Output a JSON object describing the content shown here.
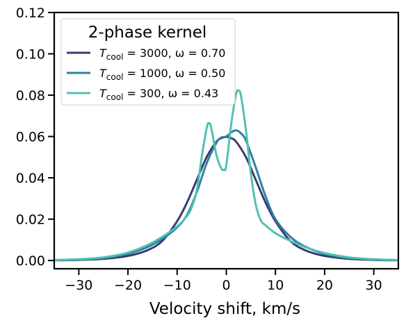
{
  "chart_data": {
    "type": "line",
    "xlabel": "Velocity shift, km/s",
    "ylabel": "",
    "xlim": [
      -35,
      35
    ],
    "ylim": [
      -0.004,
      0.12
    ],
    "xticks": [
      -30,
      -20,
      -10,
      0,
      10,
      20,
      30
    ],
    "xtick_labels": [
      "−30",
      "−20",
      "−10",
      "0",
      "10",
      "20",
      "30"
    ],
    "yticks": [
      0.0,
      0.02,
      0.04,
      0.06,
      0.08,
      0.1,
      0.12
    ],
    "ytick_labels": [
      "0.00",
      "0.02",
      "0.04",
      "0.06",
      "0.08",
      "0.10",
      "0.12"
    ],
    "grid": false,
    "legend": {
      "title": "2-phase kernel",
      "placement": "top-left"
    },
    "series": [
      {
        "name": "T_cool = 3000, ω = 0.70",
        "label_T": "T",
        "label_sub": "cool",
        "label_rest": " = 3000, ω = 0.70",
        "color": "#3b3a6e",
        "x": [
          -35,
          -30,
          -25,
          -20,
          -16,
          -13,
          -10,
          -8,
          -6,
          -4,
          -2,
          -1,
          0,
          1,
          2,
          4,
          6,
          8,
          10,
          13,
          16,
          20,
          25,
          30,
          35
        ],
        "y": [
          0.0001,
          0.0003,
          0.0008,
          0.0022,
          0.005,
          0.0095,
          0.019,
          0.028,
          0.039,
          0.05,
          0.0575,
          0.0592,
          0.0598,
          0.0592,
          0.0575,
          0.05,
          0.039,
          0.028,
          0.019,
          0.0095,
          0.005,
          0.0022,
          0.0008,
          0.0003,
          0.0001
        ]
      },
      {
        "name": "T_cool = 1000, ω = 0.50",
        "label_T": "T",
        "label_sub": "cool",
        "label_rest": " = 1000, ω = 0.50",
        "color": "#2e7ea6",
        "x": [
          -35,
          -30,
          -25,
          -20,
          -16,
          -13,
          -10,
          -8,
          -6,
          -4,
          -2,
          -1,
          0,
          1,
          2,
          3,
          4,
          6,
          8,
          10,
          13,
          16,
          20,
          25,
          30,
          35
        ],
        "y": [
          0.0002,
          0.0005,
          0.0012,
          0.0032,
          0.0065,
          0.0105,
          0.016,
          0.022,
          0.033,
          0.047,
          0.057,
          0.0595,
          0.06,
          0.062,
          0.063,
          0.0615,
          0.058,
          0.045,
          0.031,
          0.02,
          0.0115,
          0.0068,
          0.0032,
          0.0012,
          0.0005,
          0.0002
        ]
      },
      {
        "name": "T_cool = 300, ω = 0.43",
        "label_T": "T",
        "label_sub": "cool",
        "label_rest": " = 300, ω = 0.43",
        "color": "#4fc1b2",
        "x": [
          -35,
          -30,
          -25,
          -20,
          -16,
          -13,
          -10,
          -8,
          -7,
          -6,
          -5,
          -4,
          -3.5,
          -3,
          -2,
          -1,
          -0.4,
          0,
          1,
          2,
          2.5,
          3,
          4,
          5,
          6,
          7,
          8,
          10,
          13,
          16,
          20,
          25,
          30,
          35
        ],
        "y": [
          0.0002,
          0.0006,
          0.0015,
          0.0038,
          0.0075,
          0.0115,
          0.0165,
          0.0215,
          0.026,
          0.034,
          0.05,
          0.064,
          0.0665,
          0.0635,
          0.051,
          0.0445,
          0.044,
          0.046,
          0.066,
          0.0805,
          0.0822,
          0.0795,
          0.063,
          0.042,
          0.027,
          0.0195,
          0.017,
          0.0132,
          0.0095,
          0.0065,
          0.0036,
          0.0015,
          0.0006,
          0.0002
        ]
      }
    ]
  }
}
